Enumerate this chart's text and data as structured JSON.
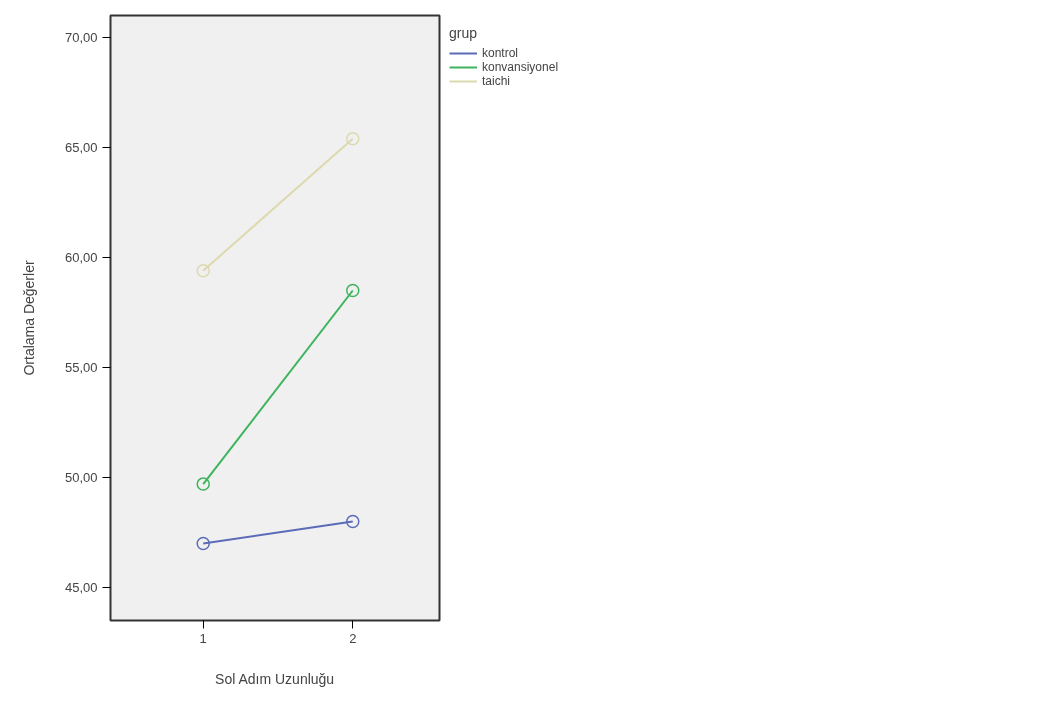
{
  "chart_data": {
    "type": "line",
    "xlabel": "Sol Adım Uzunluğu",
    "ylabel": "Ortalama Değerler",
    "legend_title": "grup",
    "x": [
      1,
      2
    ],
    "series": [
      {
        "name": "kontrol",
        "color": "#5b6bb8",
        "values": [
          47.0,
          48.0
        ]
      },
      {
        "name": "konvansiyonel",
        "color": "#3db45c",
        "values": [
          49.7,
          58.5
        ]
      },
      {
        "name": "taichi",
        "color": "#ddd9ae",
        "values": [
          59.4,
          65.4
        ]
      }
    ],
    "xlim": [
      0.38,
      2.58
    ],
    "ylim": [
      43.5,
      71
    ],
    "xticks": [
      1,
      2
    ],
    "yticks": [
      {
        "value": 45,
        "label": "45,00"
      },
      {
        "value": 50,
        "label": "50,00"
      },
      {
        "value": 55,
        "label": "55,00"
      },
      {
        "value": 60,
        "label": "60,00"
      },
      {
        "value": 65,
        "label": "65,00"
      },
      {
        "value": 70,
        "label": "70,00"
      }
    ],
    "grid": false,
    "legend": "top right",
    "marker": "circle",
    "line_style": "solid"
  }
}
